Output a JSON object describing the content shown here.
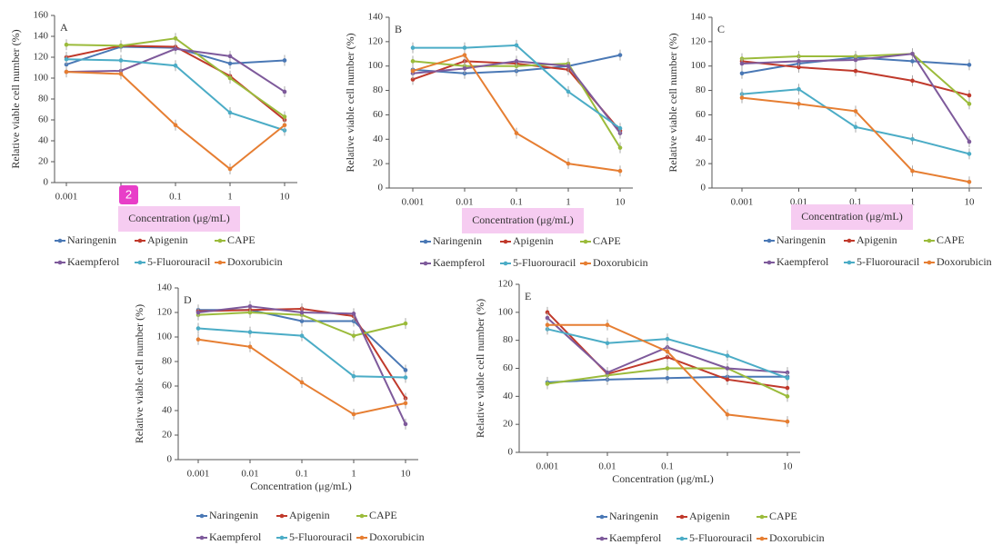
{
  "badge": "2",
  "chart_data": [
    {
      "type": "line",
      "title": "A",
      "ylabel": "Relative viable cell number (%)",
      "xlabel": "Concentration (μg/mL)",
      "categories": [
        "0.001",
        null,
        "0.1",
        "1",
        "10"
      ],
      "ylim": [
        0,
        160
      ],
      "yticks": [
        0,
        20,
        40,
        60,
        80,
        100,
        120,
        140,
        160
      ],
      "series": [
        {
          "name": "Naringenin",
          "color": "#4a78b5",
          "values": [
            113,
            130,
            129,
            114,
            117
          ]
        },
        {
          "name": "Apigenin",
          "color": "#c0392b",
          "values": [
            120,
            131,
            130,
            102,
            60
          ]
        },
        {
          "name": "CAPE",
          "color": "#9bbb3b",
          "values": [
            132,
            131,
            138,
            100,
            63
          ]
        },
        {
          "name": "Kaempferol",
          "color": "#7e5a9b",
          "values": [
            106,
            107,
            128,
            121,
            87
          ]
        },
        {
          "name": "5-Fluorouracil",
          "color": "#4bacc6",
          "values": [
            118,
            117,
            112,
            67,
            50
          ]
        },
        {
          "name": "Doxorubicin",
          "color": "#e67e32",
          "values": [
            106,
            104,
            55,
            13,
            55
          ]
        }
      ]
    },
    {
      "type": "line",
      "title": "B",
      "ylabel": "Relative viable cell number (%)",
      "xlabel": "Concentration (μg/mL)",
      "categories": [
        "0.001",
        "0.01",
        "0.1",
        "1",
        "10"
      ],
      "ylim": [
        0,
        140
      ],
      "yticks": [
        0,
        20,
        40,
        60,
        80,
        100,
        120,
        140
      ],
      "series": [
        {
          "name": "Naringenin",
          "color": "#4a78b5",
          "values": [
            97,
            94,
            96,
            100,
            109
          ]
        },
        {
          "name": "Apigenin",
          "color": "#c0392b",
          "values": [
            89,
            104,
            102,
            97,
            47
          ]
        },
        {
          "name": "CAPE",
          "color": "#9bbb3b",
          "values": [
            104,
            100,
            100,
            102,
            33
          ]
        },
        {
          "name": "Kaempferol",
          "color": "#7e5a9b",
          "values": [
            94,
            98,
            104,
            100,
            45
          ]
        },
        {
          "name": "5-Fluorouracil",
          "color": "#4bacc6",
          "values": [
            115,
            115,
            117,
            79,
            49
          ]
        },
        {
          "name": "Doxorubicin",
          "color": "#e67e32",
          "values": [
            96,
            109,
            45,
            20,
            14
          ]
        }
      ]
    },
    {
      "type": "line",
      "title": "C",
      "ylabel": "Relative viable cell number (%)",
      "xlabel": "Concentration (μg/mL)",
      "categories": [
        "0.001",
        "0.01",
        "0.1",
        "1",
        "10"
      ],
      "ylim": [
        0,
        140
      ],
      "yticks": [
        0,
        20,
        40,
        60,
        80,
        100,
        120,
        140
      ],
      "series": [
        {
          "name": "Naringenin",
          "color": "#4a78b5",
          "values": [
            94,
            102,
            107,
            104,
            101
          ]
        },
        {
          "name": "Apigenin",
          "color": "#c0392b",
          "values": [
            104,
            99,
            96,
            88,
            76
          ]
        },
        {
          "name": "CAPE",
          "color": "#9bbb3b",
          "values": [
            106,
            108,
            108,
            110,
            69
          ]
        },
        {
          "name": "Kaempferol",
          "color": "#7e5a9b",
          "values": [
            102,
            104,
            105,
            110,
            38
          ]
        },
        {
          "name": "5-Fluorouracil",
          "color": "#4bacc6",
          "values": [
            77,
            81,
            50,
            40,
            28
          ]
        },
        {
          "name": "Doxorubicin",
          "color": "#e67e32",
          "values": [
            74,
            69,
            63,
            14,
            5
          ]
        }
      ]
    },
    {
      "type": "line",
      "title": "D",
      "ylabel": "Relative viable cell number (%)",
      "xlabel": "Concentration (μg/mL)",
      "categories": [
        "0.001",
        "0.01",
        "0.1",
        "1",
        "10"
      ],
      "ylim": [
        0,
        140
      ],
      "yticks": [
        0,
        20,
        40,
        60,
        80,
        100,
        120,
        140
      ],
      "series": [
        {
          "name": "Naringenin",
          "color": "#4a78b5",
          "values": [
            122,
            122,
            113,
            113,
            73
          ]
        },
        {
          "name": "Apigenin",
          "color": "#c0392b",
          "values": [
            121,
            122,
            123,
            117,
            50
          ]
        },
        {
          "name": "CAPE",
          "color": "#9bbb3b",
          "values": [
            118,
            120,
            118,
            101,
            111
          ]
        },
        {
          "name": "Kaempferol",
          "color": "#7e5a9b",
          "values": [
            120,
            125,
            120,
            119,
            29
          ]
        },
        {
          "name": "5-Fluorouracil",
          "color": "#4bacc6",
          "values": [
            107,
            104,
            101,
            68,
            67
          ]
        },
        {
          "name": "Doxorubicin",
          "color": "#e67e32",
          "values": [
            98,
            92,
            63,
            37,
            46
          ]
        }
      ]
    },
    {
      "type": "line",
      "title": "E",
      "ylabel": "Relative viable cell number (%)",
      "xlabel": "Concentration (μg/mL)",
      "categories": [
        "0.001",
        "0.01",
        "0.1",
        null,
        "10"
      ],
      "ylim": [
        0,
        120
      ],
      "yticks": [
        0,
        20,
        40,
        60,
        80,
        100,
        120
      ],
      "series": [
        {
          "name": "Naringenin",
          "color": "#4a78b5",
          "values": [
            50,
            52,
            53,
            54,
            54
          ]
        },
        {
          "name": "Apigenin",
          "color": "#c0392b",
          "values": [
            100,
            56,
            68,
            52,
            46
          ]
        },
        {
          "name": "CAPE",
          "color": "#9bbb3b",
          "values": [
            49,
            55,
            60,
            60,
            40
          ]
        },
        {
          "name": "Kaempferol",
          "color": "#7e5a9b",
          "values": [
            96,
            57,
            75,
            60,
            57
          ]
        },
        {
          "name": "5-Fluorouracil",
          "color": "#4bacc6",
          "values": [
            88,
            78,
            81,
            69,
            53
          ]
        },
        {
          "name": "Doxorubicin",
          "color": "#e67e32",
          "values": [
            91,
            91,
            72,
            27,
            22
          ]
        }
      ]
    }
  ]
}
